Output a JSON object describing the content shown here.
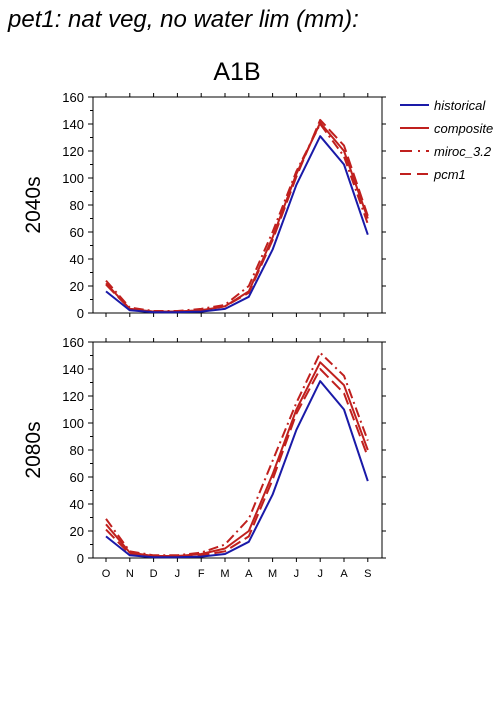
{
  "page": {
    "title": "pet1: nat veg, no water lim (mm):"
  },
  "colors": {
    "historical": "#1a1aa8",
    "projection": "#c0201e"
  },
  "chart_data": {
    "type": "line",
    "scenario": "A1B",
    "categories": [
      "O",
      "N",
      "D",
      "J",
      "F",
      "M",
      "A",
      "M",
      "J",
      "J",
      "A",
      "S"
    ],
    "ylim": [
      0,
      160
    ],
    "yticks": [
      0,
      20,
      40,
      60,
      80,
      100,
      120,
      140,
      160
    ],
    "legend": {
      "placement": "right",
      "entries": [
        {
          "name": "historical",
          "style": "solid",
          "color": "#1a1aa8"
        },
        {
          "name": "composite",
          "style": "solid",
          "color": "#c0201e"
        },
        {
          "name": "miroc_3.2",
          "style": "dashdot",
          "color": "#c0201e"
        },
        {
          "name": "pcm1",
          "style": "dash",
          "color": "#c0201e"
        }
      ]
    },
    "panels": [
      {
        "ylabel": "2040s",
        "series": [
          {
            "name": "historical",
            "values": [
              16,
              2,
              0.5,
              0.5,
              1,
              3,
              12,
              47,
              95,
              131,
              110,
              58
            ]
          },
          {
            "name": "composite",
            "values": [
              22,
              3,
              1,
              1,
              2,
              5,
              16,
              56,
              103,
              141,
              120,
              70
            ]
          },
          {
            "name": "miroc_3.2",
            "values": [
              24,
              4,
              1.5,
              1.5,
              3,
              6,
              20,
              60,
              105,
              140,
              116,
              66
            ]
          },
          {
            "name": "pcm1",
            "values": [
              21,
              3,
              1,
              1,
              2,
              5,
              15,
              54,
              101,
              143,
              124,
              72
            ]
          }
        ]
      },
      {
        "ylabel": "2080s",
        "series": [
          {
            "name": "historical",
            "values": [
              16,
              2,
              0.5,
              0.5,
              1,
              3,
              12,
              47,
              95,
              131,
              110,
              57
            ]
          },
          {
            "name": "composite",
            "values": [
              25,
              4,
              1.5,
              1.5,
              3,
              7,
              20,
              62,
              110,
              145,
              128,
              80
            ]
          },
          {
            "name": "miroc_3.2",
            "values": [
              29,
              5,
              2,
              2,
              4,
              10,
              29,
              72,
              115,
              152,
              135,
              87
            ]
          },
          {
            "name": "pcm1",
            "values": [
              21,
              3,
              1,
              1,
              2,
              5,
              16,
              58,
              107,
              140,
              122,
              75
            ]
          }
        ]
      }
    ]
  }
}
